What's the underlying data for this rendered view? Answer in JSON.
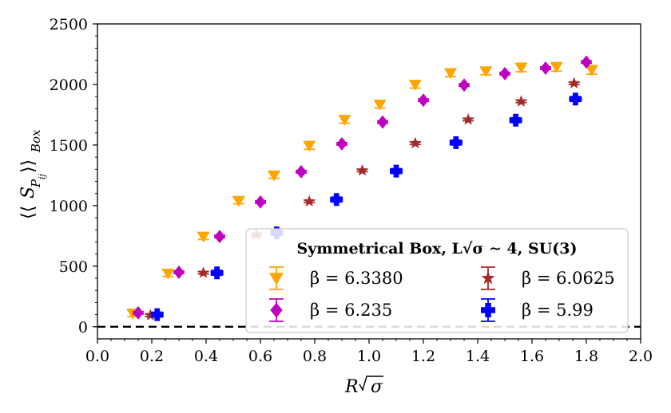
{
  "chart_data": {
    "type": "scatter",
    "xlabel": "R√σ",
    "ylabel": "⟨⟨S_{P_ij}⟩⟩_{Box}",
    "xlim": [
      0.0,
      2.0
    ],
    "ylim": [
      -100,
      2500
    ],
    "x_ticks": [
      "0.0",
      "0.2",
      "0.4",
      "0.6",
      "0.8",
      "1.0",
      "1.2",
      "1.4",
      "1.6",
      "1.8",
      "2.0"
    ],
    "y_ticks": [
      "0",
      "500",
      "1000",
      "1500",
      "2000",
      "2500"
    ],
    "reference_line": {
      "y": 0,
      "style": "dashed",
      "color": "#000000"
    },
    "legend": {
      "title": "Symmetrical Box, L√σ ∼ 4, SU(3)",
      "position": "lower-right"
    },
    "series": [
      {
        "name": "β = 6.3380",
        "color": "#FFA500",
        "marker": "triangle-down",
        "x": [
          0.13,
          0.26,
          0.39,
          0.52,
          0.65,
          0.78,
          0.91,
          1.04,
          1.17,
          1.3,
          1.43,
          1.56,
          1.69,
          1.82
        ],
        "y": [
          110,
          440,
          745,
          1040,
          1250,
          1495,
          1710,
          1835,
          2000,
          2095,
          2110,
          2140,
          2145,
          2120
        ],
        "err": [
          25,
          25,
          25,
          25,
          25,
          30,
          30,
          30,
          30,
          30,
          30,
          35,
          35,
          35
        ]
      },
      {
        "name": "β = 6.235",
        "color": "#C000C0",
        "marker": "diamond",
        "x": [
          0.15,
          0.3,
          0.45,
          0.6,
          0.75,
          0.9,
          1.05,
          1.2,
          1.35,
          1.5,
          1.65,
          1.8
        ],
        "y": [
          115,
          450,
          745,
          1030,
          1280,
          1510,
          1690,
          1870,
          1995,
          2090,
          2135,
          2185
        ],
        "err": [
          10,
          10,
          10,
          10,
          10,
          10,
          10,
          10,
          10,
          10,
          10,
          10
        ]
      },
      {
        "name": "β = 6.0625",
        "color": "#A52A2A",
        "marker": "star",
        "x": [
          0.195,
          0.39,
          0.585,
          0.78,
          0.975,
          1.17,
          1.365,
          1.56,
          1.755
        ],
        "y": [
          95,
          445,
          760,
          1035,
          1290,
          1515,
          1710,
          1860,
          2010
        ],
        "err": [
          10,
          10,
          10,
          10,
          10,
          10,
          10,
          10,
          10
        ]
      },
      {
        "name": "β = 5.99",
        "color": "#0000FF",
        "marker": "plus",
        "x": [
          0.22,
          0.44,
          0.66,
          0.88,
          1.1,
          1.32,
          1.54,
          1.76
        ],
        "y": [
          100,
          445,
          775,
          1050,
          1285,
          1520,
          1705,
          1880
        ],
        "err": [
          20,
          20,
          20,
          20,
          20,
          20,
          20,
          20
        ]
      }
    ]
  }
}
